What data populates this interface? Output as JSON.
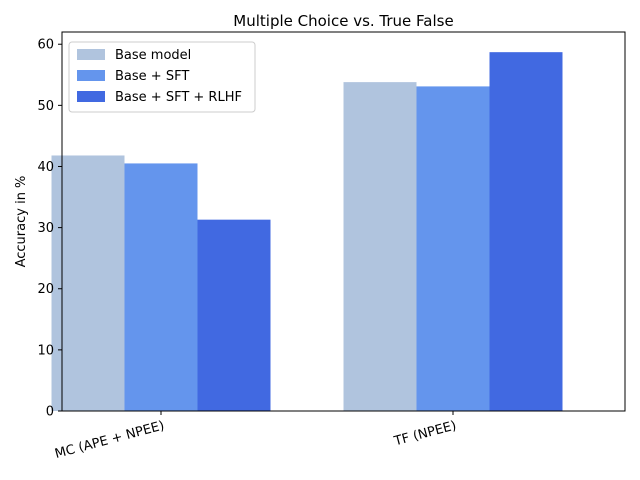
{
  "chart_data": {
    "type": "bar",
    "title": "Multiple Choice vs. True False",
    "xlabel": "",
    "ylabel": "Accuracy in %",
    "categories": [
      "MC (APE + NPEE)",
      "TF (NPEE)"
    ],
    "series": [
      {
        "name": "Base model",
        "values": [
          41.8,
          53.8
        ],
        "color": "#b0c4de"
      },
      {
        "name": "Base + SFT",
        "values": [
          40.5,
          53.1
        ],
        "color": "#6495ed"
      },
      {
        "name": "Base + SFT + RLHF",
        "values": [
          31.3,
          58.7
        ],
        "color": "#4169e1"
      }
    ],
    "ylim": [
      0,
      62
    ],
    "yticks": [
      0,
      10,
      20,
      30,
      40,
      50,
      60
    ],
    "grid": false,
    "legend_position": "top-left"
  }
}
